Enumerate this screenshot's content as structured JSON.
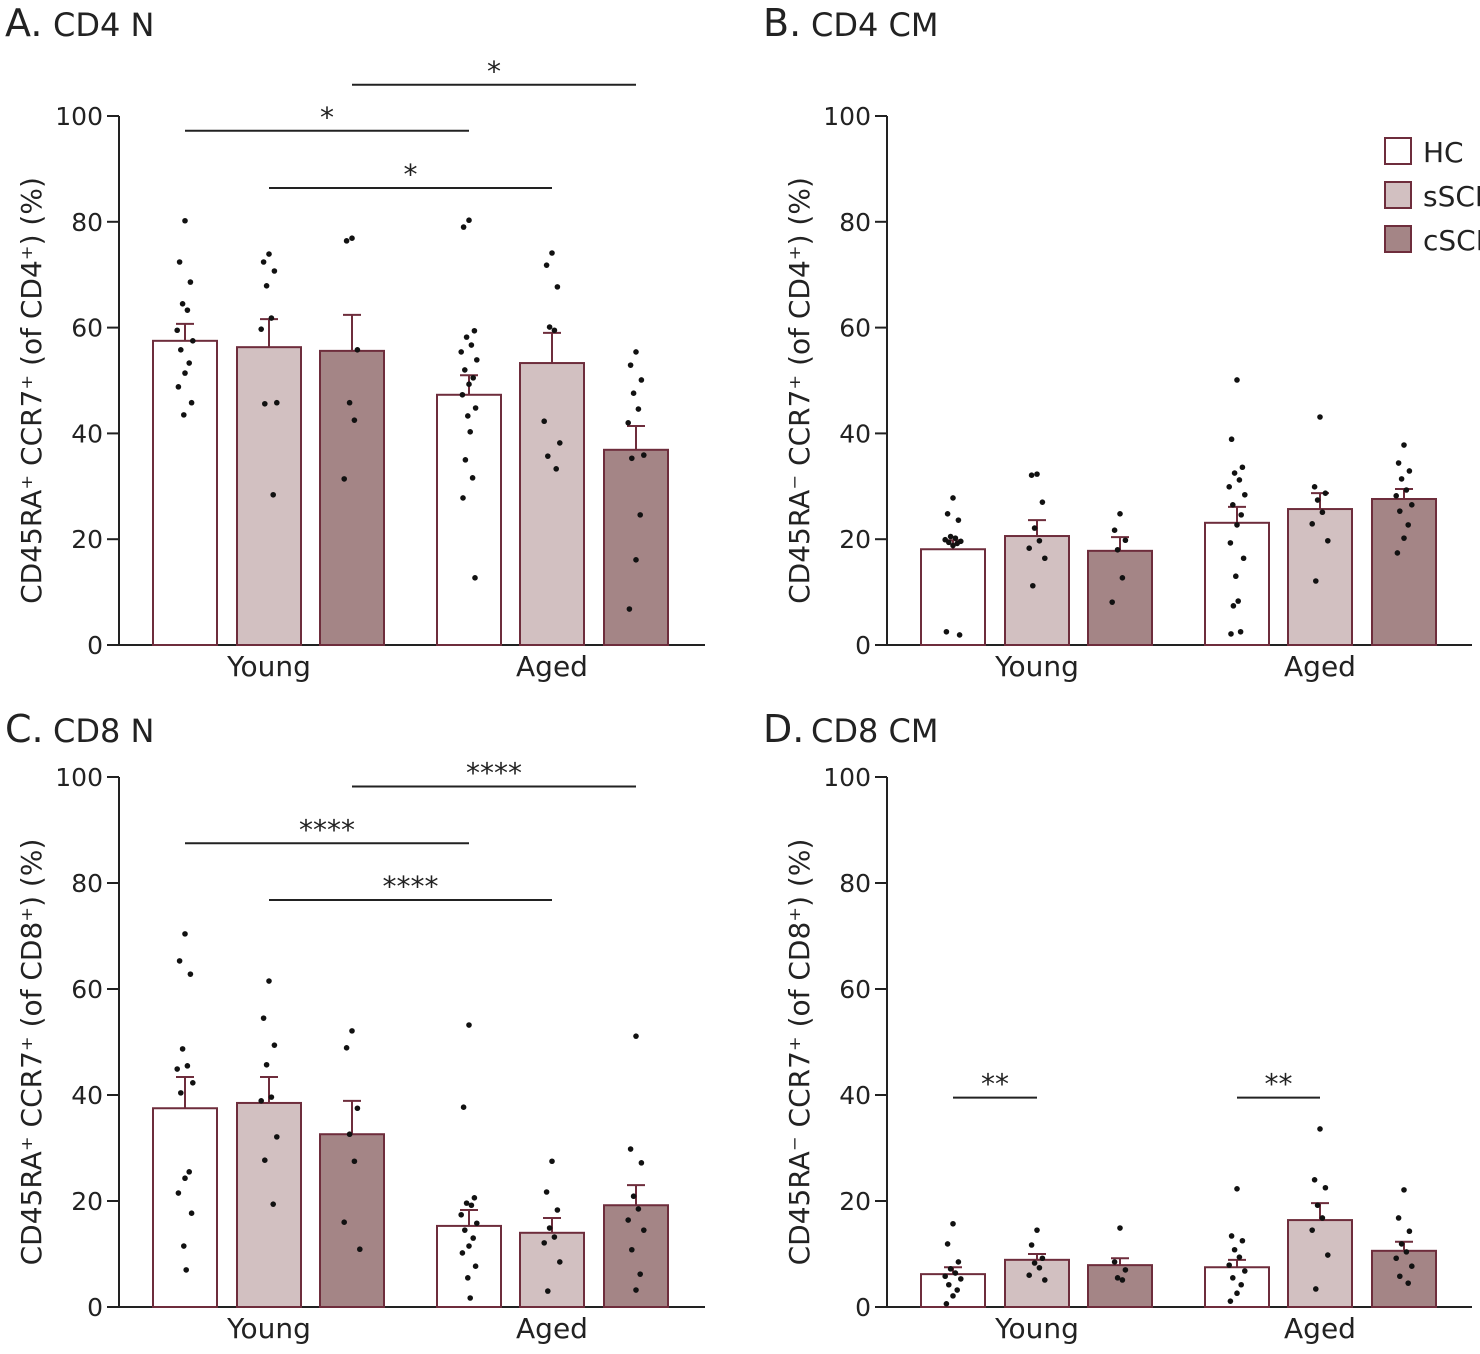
{
  "legend": [
    {
      "name": "HC",
      "color": "#ffffff"
    },
    {
      "name": "sSCI",
      "color": "#d2c0c1"
    },
    {
      "name": "cSCI",
      "color": "#a48586"
    }
  ],
  "colors": {
    "border": "#6e2d3c",
    "points": "#111111",
    "axis": "#222222"
  },
  "chart_data": [
    {
      "type": "bar",
      "panel_letter": "A.",
      "title": "CD4 N",
      "ylabel": "CD45RA⁺ CCR7⁺ (of CD4⁺) (%)",
      "ylim": [
        0,
        100
      ],
      "yticks": [
        0,
        20,
        40,
        60,
        80,
        100
      ],
      "categories": [
        "Young",
        "Aged"
      ],
      "series": [
        {
          "name": "HC",
          "values": [
            57.5,
            47.3
          ],
          "sem": [
            3.2,
            3.7
          ],
          "points": [
            [
              80.2,
              72.4,
              68.6,
              64.5,
              63.3,
              59.5,
              57.5,
              55.8,
              53.3,
              51.4,
              48.8,
              45.8,
              43.5
            ],
            [
              80.3,
              79,
              59.4,
              58.2,
              56.7,
              55.4,
              53.9,
              52,
              50.5,
              49.3,
              47.3,
              44.8,
              43.3,
              40.3,
              35,
              31.6,
              27.8,
              12.7
            ]
          ]
        },
        {
          "name": "sSCI",
          "values": [
            56.3,
            53.3
          ],
          "sem": [
            5.3,
            5.7
          ],
          "points": [
            [
              73.9,
              72.4,
              70.7,
              67.9,
              61.8,
              59.7,
              45.8,
              45.6,
              28.4
            ],
            [
              74.1,
              71.8,
              67.7,
              60.1,
              59.5,
              42.3,
              38.2,
              35.7,
              33.3
            ]
          ]
        },
        {
          "name": "cSCI",
          "values": [
            55.6,
            36.9
          ],
          "sem": [
            6.8,
            4.5
          ],
          "points": [
            [
              76.9,
              76.4,
              55.8,
              45.8,
              42.5,
              31.4
            ],
            [
              55.4,
              52.9,
              50.1,
              47.6,
              44.6,
              42,
              35.9,
              35.3,
              24.6,
              16.1,
              6.8
            ]
          ]
        }
      ],
      "significance": [
        {
          "from": "Young HC",
          "to": "Aged HC",
          "label": "*"
        },
        {
          "from": "Young sSCI",
          "to": "Aged sSCI",
          "label": "*"
        },
        {
          "from": "Young cSCI",
          "to": "Aged cSCI",
          "label": "*"
        }
      ],
      "grid": false,
      "legend_position": "none"
    },
    {
      "type": "bar",
      "panel_letter": "B.",
      "title": "CD4 CM",
      "ylabel": "CD45RA⁻ CCR7⁺ (of CD4⁺) (%)",
      "ylim": [
        0,
        100
      ],
      "yticks": [
        0,
        20,
        40,
        60,
        80,
        100
      ],
      "categories": [
        "Young",
        "Aged"
      ],
      "series": [
        {
          "name": "HC",
          "values": [
            18.1,
            23.1
          ],
          "sem": [
            1.7,
            3.0
          ],
          "points": [
            [
              27.8,
              24.8,
              23.6,
              20.5,
              20.2,
              19.9,
              19.6,
              19.4,
              19.2,
              18.8,
              2.5,
              1.9
            ],
            [
              50.1,
              38.9,
              33.6,
              32.5,
              31.2,
              29.9,
              28.4,
              26.5,
              24.6,
              22.7,
              19.3,
              16.4,
              13,
              8.3,
              7.4,
              2.5,
              2.1
            ]
          ]
        },
        {
          "name": "sSCI",
          "values": [
            20.6,
            25.7
          ],
          "sem": [
            3.0,
            3.0
          ],
          "points": [
            [
              32.3,
              32.1,
              27,
              22.1,
              19.7,
              18.3,
              16.4,
              11.2
            ],
            [
              43.1,
              29.9,
              28.7,
              27.4,
              25.1,
              22.9,
              19.7,
              12.1
            ]
          ]
        },
        {
          "name": "cSCI",
          "values": [
            17.8,
            27.6
          ],
          "sem": [
            2.6,
            1.9
          ],
          "points": [
            [
              24.8,
              21.7,
              19.8,
              18,
              12.7,
              8.1
            ],
            [
              37.8,
              34.4,
              32.9,
              31.4,
              29.3,
              28.2,
              26.5,
              25.3,
              22.7,
              20.2,
              17.4
            ]
          ]
        }
      ],
      "significance": [],
      "grid": false,
      "legend_position": "top-right"
    },
    {
      "type": "bar",
      "panel_letter": "C.",
      "title": "CD8 N",
      "ylabel": "CD45RA⁺ CCR7⁺ (of CD8⁺) (%)",
      "ylim": [
        0,
        100
      ],
      "yticks": [
        0,
        20,
        40,
        60,
        80,
        100
      ],
      "categories": [
        "Young",
        "Aged"
      ],
      "series": [
        {
          "name": "HC",
          "values": [
            37.5,
            15.3
          ],
          "sem": [
            5.9,
            3.0
          ],
          "points": [
            [
              70.4,
              65.3,
              62.8,
              48.7,
              45.5,
              44.9,
              42.3,
              40.4,
              25.5,
              24.3,
              21.5,
              17.7,
              11.5,
              7
            ],
            [
              53.2,
              37.7,
              20.6,
              19.6,
              19.2,
              17.4,
              15.8,
              14.5,
              13,
              11.5,
              10.2,
              7.7,
              5.5,
              1.7
            ]
          ]
        },
        {
          "name": "sSCI",
          "values": [
            38.5,
            14.0
          ],
          "sem": [
            4.9,
            2.8
          ],
          "points": [
            [
              61.5,
              54.5,
              49.4,
              45.7,
              39.6,
              38.9,
              32.1,
              27.7,
              19.4
            ],
            [
              27.5,
              21.7,
              18.3,
              14.9,
              13.2,
              12.1,
              8.5,
              3
            ]
          ]
        },
        {
          "name": "cSCI",
          "values": [
            32.6,
            19.2
          ],
          "sem": [
            6.3,
            3.8
          ],
          "points": [
            [
              52.1,
              48.9,
              37.5,
              32.6,
              27.5,
              16,
              10.9
            ],
            [
              51.1,
              29.8,
              27.2,
              20.9,
              18.5,
              16.4,
              14.5,
              10.8,
              6.2,
              3.2
            ]
          ]
        }
      ],
      "significance": [
        {
          "from": "Young HC",
          "to": "Aged HC",
          "label": "****"
        },
        {
          "from": "Young sSCI",
          "to": "Aged sSCI",
          "label": "****"
        },
        {
          "from": "Young cSCI",
          "to": "Aged cSCI",
          "label": "****"
        }
      ],
      "grid": false,
      "legend_position": "none"
    },
    {
      "type": "bar",
      "panel_letter": "D.",
      "title": "CD8 CM",
      "ylabel": "CD45RA⁻ CCR7⁺ (of CD8⁺) (%)",
      "ylim": [
        0,
        100
      ],
      "yticks": [
        0,
        20,
        40,
        60,
        80,
        100
      ],
      "categories": [
        "Young",
        "Aged"
      ],
      "series": [
        {
          "name": "HC",
          "values": [
            6.2,
            7.5
          ],
          "sem": [
            1.3,
            1.4
          ],
          "points": [
            [
              15.7,
              11.9,
              8.5,
              7.2,
              6.4,
              5.8,
              5.3,
              4.2,
              3.2,
              2.1,
              0.6
            ],
            [
              22.3,
              13.4,
              12.5,
              10.8,
              9.4,
              7.9,
              6.8,
              5.5,
              4.2,
              2.6,
              1.1
            ]
          ]
        },
        {
          "name": "sSCI",
          "values": [
            8.9,
            16.4
          ],
          "sem": [
            1.1,
            3.2
          ],
          "points": [
            [
              14.5,
              11.7,
              9.2,
              8.3,
              7.4,
              6,
              5.1
            ],
            [
              33.6,
              24,
              22.5,
              19.2,
              16.8,
              14.5,
              9.8,
              3.4
            ]
          ]
        },
        {
          "name": "cSCI",
          "values": [
            7.9,
            10.6
          ],
          "sem": [
            1.3,
            1.7
          ],
          "points": [
            [
              14.9,
              8.5,
              7,
              5.5,
              5.1
            ],
            [
              22.1,
              16.8,
              14.3,
              11.9,
              10.4,
              9.2,
              7.7,
              5.8,
              4.5
            ]
          ]
        }
      ],
      "significance": [
        {
          "from": "Young HC",
          "to": "Young sSCI",
          "label": "**"
        },
        {
          "from": "Aged HC",
          "to": "Aged sSCI",
          "label": "**"
        }
      ],
      "grid": false,
      "legend_position": "none"
    }
  ]
}
